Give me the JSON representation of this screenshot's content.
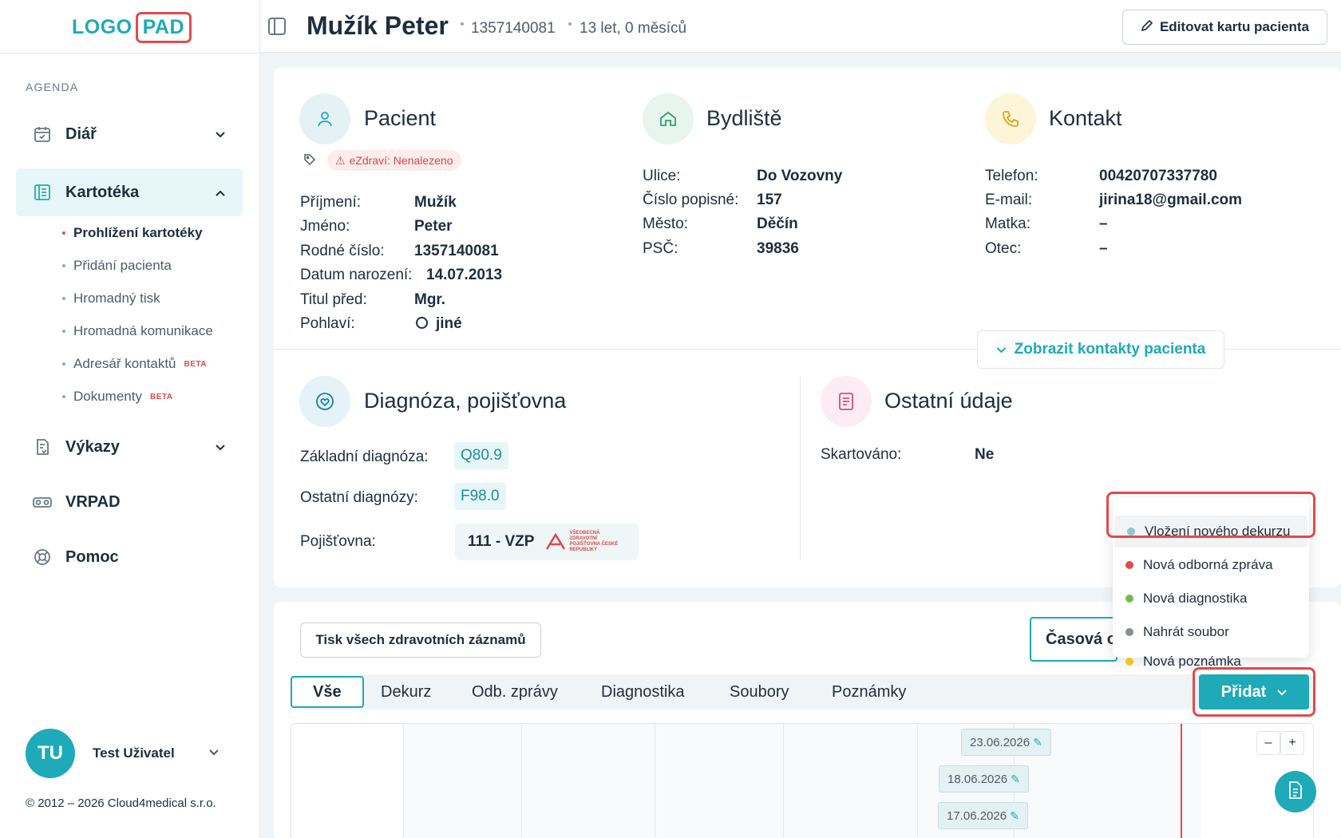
{
  "logo": {
    "part1": "LOGO",
    "part2": "PAD"
  },
  "sidebar": {
    "section_label": "AGENDA",
    "items": [
      {
        "label": "Diář",
        "icon": "calendar-icon"
      },
      {
        "label": "Kartotéka",
        "icon": "card-file-icon"
      },
      {
        "label": "Výkazy",
        "icon": "report-icon"
      },
      {
        "label": "VRPAD",
        "icon": "vr-headset-icon"
      },
      {
        "label": "Pomoc",
        "icon": "lifebuoy-icon"
      }
    ],
    "subitems": [
      {
        "label": "Prohlížení kartotéky"
      },
      {
        "label": "Přidání pacienta"
      },
      {
        "label": "Hromadný tisk"
      },
      {
        "label": "Hromadná komunikace"
      },
      {
        "label": "Adresář kontaktů",
        "badge": "BETA"
      },
      {
        "label": "Dokumenty",
        "badge": "BETA"
      }
    ],
    "user": {
      "initials": "TU",
      "name": "Test Uživatel"
    },
    "copyright": "© 2012 – 2026 Cloud4medical s.r.o."
  },
  "header": {
    "patient_name": "Mužík Peter",
    "birth_number": "1357140081",
    "age": "13 let, 0 měsíců",
    "edit_button": "Editovat kartu pacienta"
  },
  "patient": {
    "title": "Pacient",
    "ezdravi_tag": "eZdraví: Nenalezeno",
    "fields": [
      {
        "label": "Příjmení:",
        "value": "Mužík"
      },
      {
        "label": "Jméno:",
        "value": "Peter"
      },
      {
        "label": "Rodné číslo:",
        "value": "1357140081"
      },
      {
        "label": "Datum narození:",
        "value": "14.07.2013"
      },
      {
        "label": "Titul před:",
        "value": "Mgr."
      },
      {
        "label": "Pohlaví:",
        "value": "jiné"
      }
    ]
  },
  "residence": {
    "title": "Bydliště",
    "fields": [
      {
        "label": "Ulice:",
        "value": "Do Vozovny"
      },
      {
        "label": "Číslo popisné:",
        "value": "157"
      },
      {
        "label": "Město:",
        "value": "Děčín"
      },
      {
        "label": "PSČ:",
        "value": "39836"
      }
    ]
  },
  "contact": {
    "title": "Kontakt",
    "fields": [
      {
        "label": "Telefon:",
        "value": "00420707337780"
      },
      {
        "label": "E-mail:",
        "value": "jirina18@gmail.com"
      },
      {
        "label": "Matka:",
        "value": "–"
      },
      {
        "label": "Otec:",
        "value": "–"
      }
    ],
    "show_contacts_button": "Zobrazit kontakty pacienta"
  },
  "diagnosis": {
    "title": "Diagnóza, pojišťovna",
    "base_label": "Základní diagnóza:",
    "base_value": "Q80.9",
    "other_label": "Ostatní diagnózy:",
    "other_value": "F98.0",
    "insurance_label": "Pojišťovna:",
    "insurance_value": "111 - VZP",
    "insurance_logo_text": "VŠEOBECNÁ ZDRAVOTNÍ POJIŠŤOVNA ČESKÉ REPUBLIKY"
  },
  "other": {
    "title": "Ostatní údaje",
    "shredded_label": "Skartováno:",
    "shredded_value": "Ne"
  },
  "records": {
    "print_button": "Tisk všech zdravotních záznamů",
    "timeline_button": "Časová osa",
    "tabs": [
      "Vše",
      "Dekurz",
      "Odb. zprávy",
      "Diagnostika",
      "Soubory",
      "Poznámky"
    ],
    "add_button": "Přidat",
    "events": [
      "23.06.2026",
      "18.06.2026",
      "17.06.2026"
    ],
    "zoom_out": "–",
    "zoom_in": "+"
  },
  "add_menu": [
    {
      "label": "Vložení nového dekurzu",
      "color": "#8ec7cc"
    },
    {
      "label": "Nová odborná zpráva",
      "color": "#e24b4b"
    },
    {
      "label": "Nová diagnostika",
      "color": "#6cc04a"
    },
    {
      "label": "Nahrát soubor",
      "color": "#8a8f96"
    },
    {
      "label": "Nová poznámka",
      "color": "#f5c518"
    }
  ]
}
